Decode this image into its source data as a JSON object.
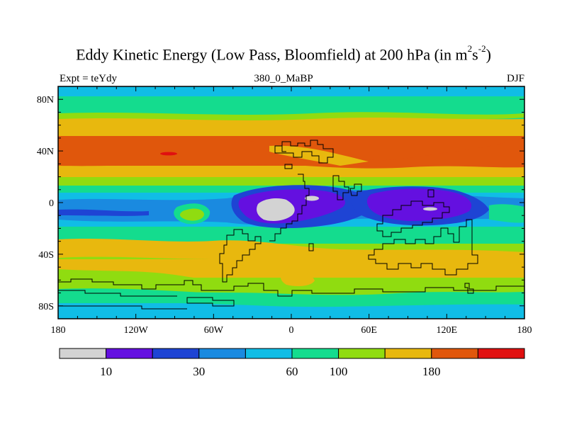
{
  "title": {
    "main": "Eddy Kinetic Energy (Low Pass, Bloomfield) at 200 hPa (in m",
    "sup1": "2",
    "mid": "s",
    "sup2": "-2",
    "end": ")"
  },
  "subtitle": {
    "left": "Expt = teYdy",
    "center": "380_0_MaBP",
    "right": "DJF"
  },
  "map": {
    "lat_range": [
      -90,
      90
    ],
    "lon_range": [
      -180,
      180
    ],
    "y_ticks": [
      {
        "lat": 80,
        "label": "80N"
      },
      {
        "lat": 40,
        "label": "40N"
      },
      {
        "lat": 0,
        "label": "0"
      },
      {
        "lat": -40,
        "label": "40S"
      },
      {
        "lat": -80,
        "label": "80S"
      }
    ],
    "x_ticks": [
      {
        "lon": -180,
        "label": "180"
      },
      {
        "lon": -120,
        "label": "120W"
      },
      {
        "lon": -60,
        "label": "60W"
      },
      {
        "lon": 0,
        "label": "0"
      },
      {
        "lon": 60,
        "label": "60E"
      },
      {
        "lon": 120,
        "label": "120E"
      },
      {
        "lon": 180,
        "label": "180"
      }
    ]
  },
  "colorbar": {
    "colors": [
      "#d3d3d3",
      "#6410e0",
      "#1e44d4",
      "#1a8ae0",
      "#10bde6",
      "#14dc8e",
      "#90dc10",
      "#e8b80e",
      "#e0570c",
      "#e01010"
    ],
    "labels": [
      {
        "after_box": 1,
        "text": "10"
      },
      {
        "after_box": 3,
        "text": "30"
      },
      {
        "after_box": 5,
        "text": "60"
      },
      {
        "after_box": 6,
        "text": "100"
      },
      {
        "after_box": 8,
        "text": "180"
      }
    ]
  },
  "palette": {
    "gray": "#d3d3d3",
    "purple": "#6410e0",
    "blue": "#1e44d4",
    "mid_blue": "#1a8ae0",
    "cyan": "#10bde6",
    "green": "#14dc8e",
    "lime": "#90dc10",
    "yellow": "#e8b80e",
    "orange": "#e0570c",
    "red": "#e01010",
    "coast": "#000000"
  }
}
